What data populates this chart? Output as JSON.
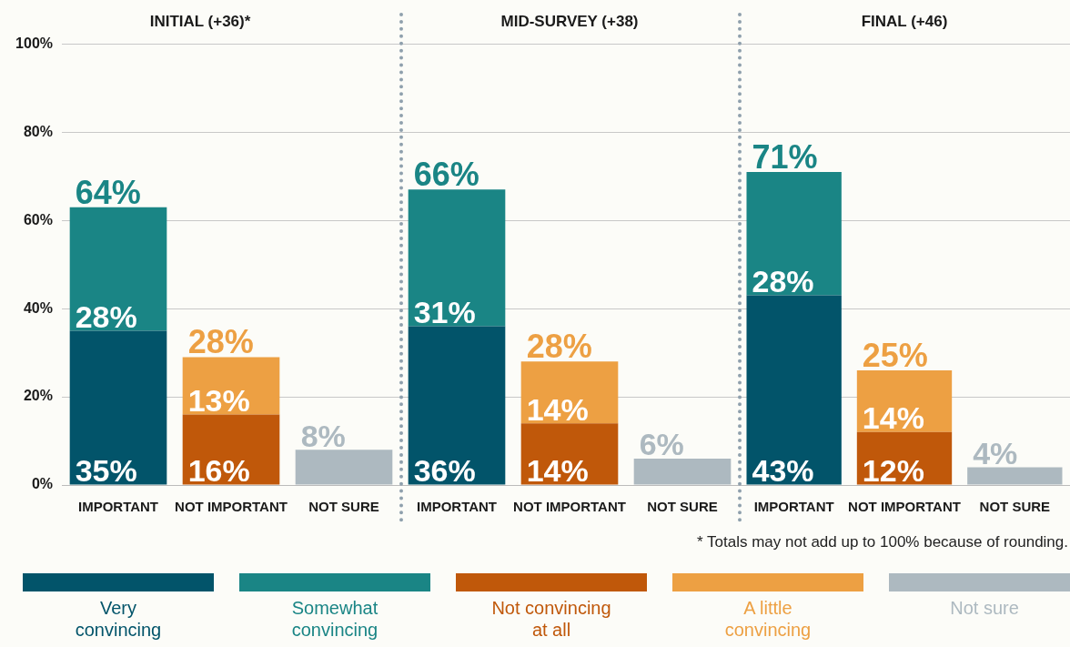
{
  "chart_data": [
    {
      "type": "bar",
      "title": "INITIAL (+36)*",
      "categories": [
        "IMPORTANT",
        "NOT IMPORTANT",
        "NOT SURE"
      ],
      "stacked": true,
      "ylim": [
        0,
        100
      ],
      "yticks": [
        {
          "value": 0,
          "label": "0%"
        },
        {
          "value": 20,
          "label": "20%"
        },
        {
          "value": 40,
          "label": "40%"
        },
        {
          "value": 60,
          "label": "60%"
        },
        {
          "value": 80,
          "label": "80%"
        },
        {
          "value": 100,
          "label": "100%"
        }
      ],
      "grid": "y",
      "legend": "bottom",
      "totals": [
        "64%",
        "28%",
        null
      ],
      "series": [
        {
          "name": "Very convincing",
          "color": "#02546a",
          "values": [
            35,
            null,
            null
          ],
          "value_labels": [
            "35%",
            null,
            null
          ]
        },
        {
          "name": "Somewhat convincing",
          "color": "#1a8585",
          "values": [
            28,
            null,
            null
          ],
          "value_labels": [
            "28%",
            null,
            null
          ]
        },
        {
          "name": "Not convincing at all",
          "color": "#c0580a",
          "values": [
            null,
            16,
            null
          ],
          "value_labels": [
            null,
            "16%",
            null
          ]
        },
        {
          "name": "A little convincing",
          "color": "#eda043",
          "values": [
            null,
            13,
            null
          ],
          "value_labels": [
            null,
            "13%",
            null
          ]
        },
        {
          "name": "Not sure",
          "color": "#adb9c0",
          "values": [
            null,
            null,
            8
          ],
          "value_labels": [
            null,
            null,
            "8%"
          ]
        }
      ]
    },
    {
      "type": "bar",
      "title": "MID-SURVEY (+38)",
      "categories": [
        "IMPORTANT",
        "NOT IMPORTANT",
        "NOT SURE"
      ],
      "stacked": true,
      "ylim": [
        0,
        100
      ],
      "yticks": [
        0,
        20,
        40,
        60,
        80,
        100
      ],
      "grid": "y",
      "tick_labels": "x",
      "totals": [
        "66%",
        "28%",
        null
      ],
      "series": [
        {
          "color": "#02546a",
          "values": [
            36,
            null,
            null
          ],
          "value_labels": [
            "36%",
            null,
            null
          ]
        },
        {
          "color": "#1a8585",
          "values": [
            31,
            null,
            null
          ],
          "value_labels": [
            "31%",
            null,
            null
          ]
        },
        {
          "color": "#c0580a",
          "values": [
            null,
            14,
            null
          ],
          "value_labels": [
            null,
            "14%",
            null
          ]
        },
        {
          "color": "#eda043",
          "values": [
            null,
            14,
            null
          ],
          "value_labels": [
            null,
            "14%",
            null
          ]
        },
        {
          "color": "#adb9c0",
          "values": [
            null,
            null,
            6
          ],
          "value_labels": [
            null,
            null,
            "6%"
          ]
        }
      ]
    },
    {
      "type": "bar",
      "title": "FINAL (+46)",
      "categories": [
        "IMPORTANT",
        "NOT IMPORTANT",
        "NOT SURE"
      ],
      "stacked": true,
      "ylim": [
        0,
        100
      ],
      "yticks": [
        0,
        20,
        40,
        60,
        80,
        100
      ],
      "grid": "y",
      "tick_labels": "x",
      "totals": [
        "71%",
        "25%",
        null
      ],
      "annotations": [
        "* Totals may not add up to 100% because of rounding."
      ],
      "series": [
        {
          "color": "#02546a",
          "values": [
            43,
            null,
            null
          ],
          "value_labels": [
            "43%",
            null,
            null
          ]
        },
        {
          "color": "#1a8585",
          "values": [
            28,
            null,
            null
          ],
          "value_labels": [
            "28%",
            null,
            null
          ]
        },
        {
          "color": "#c0580a",
          "values": [
            null,
            12,
            null
          ],
          "value_labels": [
            null,
            "12%",
            null
          ]
        },
        {
          "color": "#eda043",
          "values": [
            null,
            14,
            null
          ],
          "value_labels": [
            null,
            "14%",
            null
          ]
        },
        {
          "color": "#adb9c0",
          "values": [
            null,
            null,
            4
          ],
          "value_labels": [
            null,
            null,
            "4%"
          ]
        }
      ]
    }
  ]
}
